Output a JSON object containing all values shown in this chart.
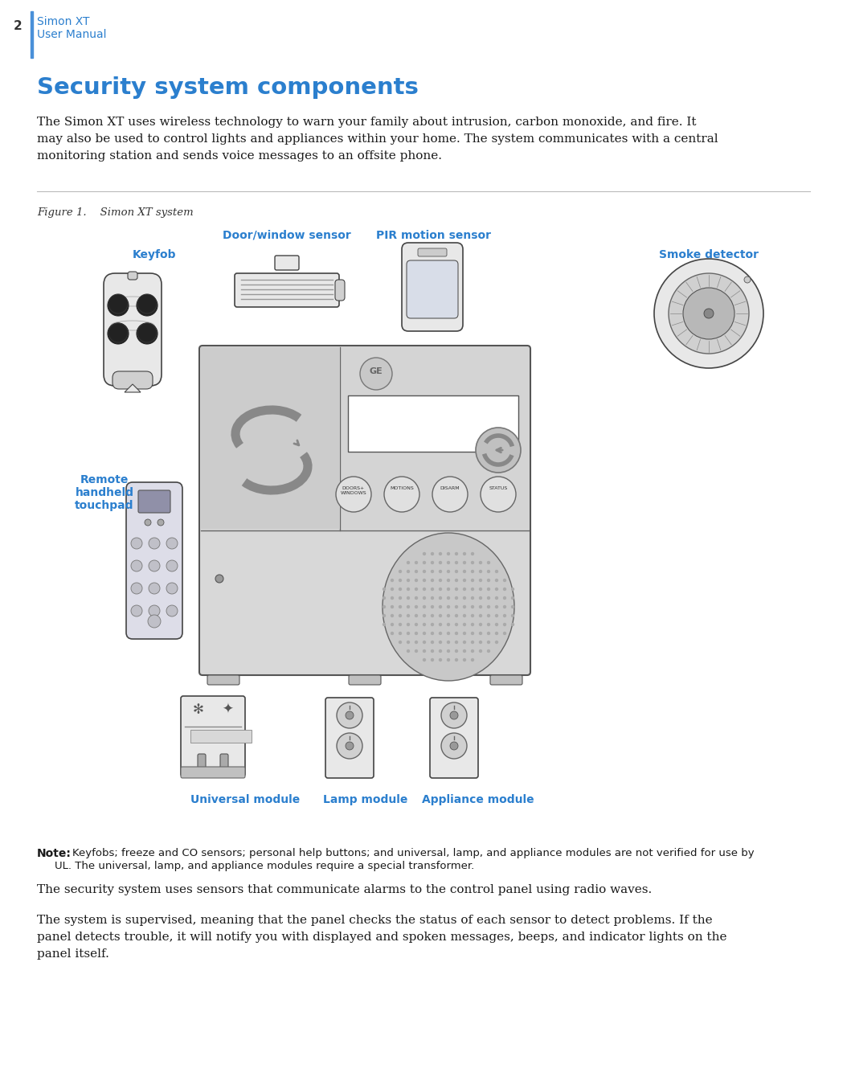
{
  "page_num": "2",
  "header_line1": "Simon XT",
  "header_line2": "User Manual",
  "header_color": "#2b7fce",
  "title": "Security system components",
  "title_color": "#2b7fce",
  "body_lines": [
    "The Simon XT uses wireless technology to warn your family about intrusion, carbon monoxide, and fire. It",
    "may also be used to control lights and appliances within your home. The system communicates with a central",
    "monitoring station and sends voice messages to an offsite phone."
  ],
  "figure_label": "Figure 1.    Simon XT system",
  "label_color": "#2b7fce",
  "note_bold": "Note:",
  "note_lines": [
    "  Keyfobs; freeze and CO sensors; personal help buttons; and universal, lamp, and appliance modules are not verified for use by",
    "  UL. The universal, lamp, and appliance modules require a special transformer."
  ],
  "para1": "The security system uses sensors that communicate alarms to the control panel using radio waves.",
  "para2_lines": [
    "The system is supervised, meaning that the panel checks the status of each sensor to detect problems. If the",
    "panel detects trouble, it will notify you with displayed and spoken messages, beeps, and indicator lights on the",
    "panel itself."
  ],
  "labels": {
    "keyfob": "Keyfob",
    "door_sensor": "Door/window sensor",
    "pir_sensor": "PIR motion sensor",
    "smoke_detector": "Smoke detector",
    "remote_touchpad": "Remote\nhandheld\ntouchpad",
    "universal_module": "Universal module",
    "lamp_module": "Lamp module",
    "appliance_module": "Appliance module"
  },
  "bg_color": "#ffffff",
  "text_color": "#1a1a1a",
  "border_color": "#4a90d9",
  "divider_color": "#bbbbbb",
  "device_outline": "#444444",
  "device_fill_light": "#e8e8e8",
  "device_fill_mid": "#d0d0d0",
  "device_fill_dark": "#b8b8b8"
}
